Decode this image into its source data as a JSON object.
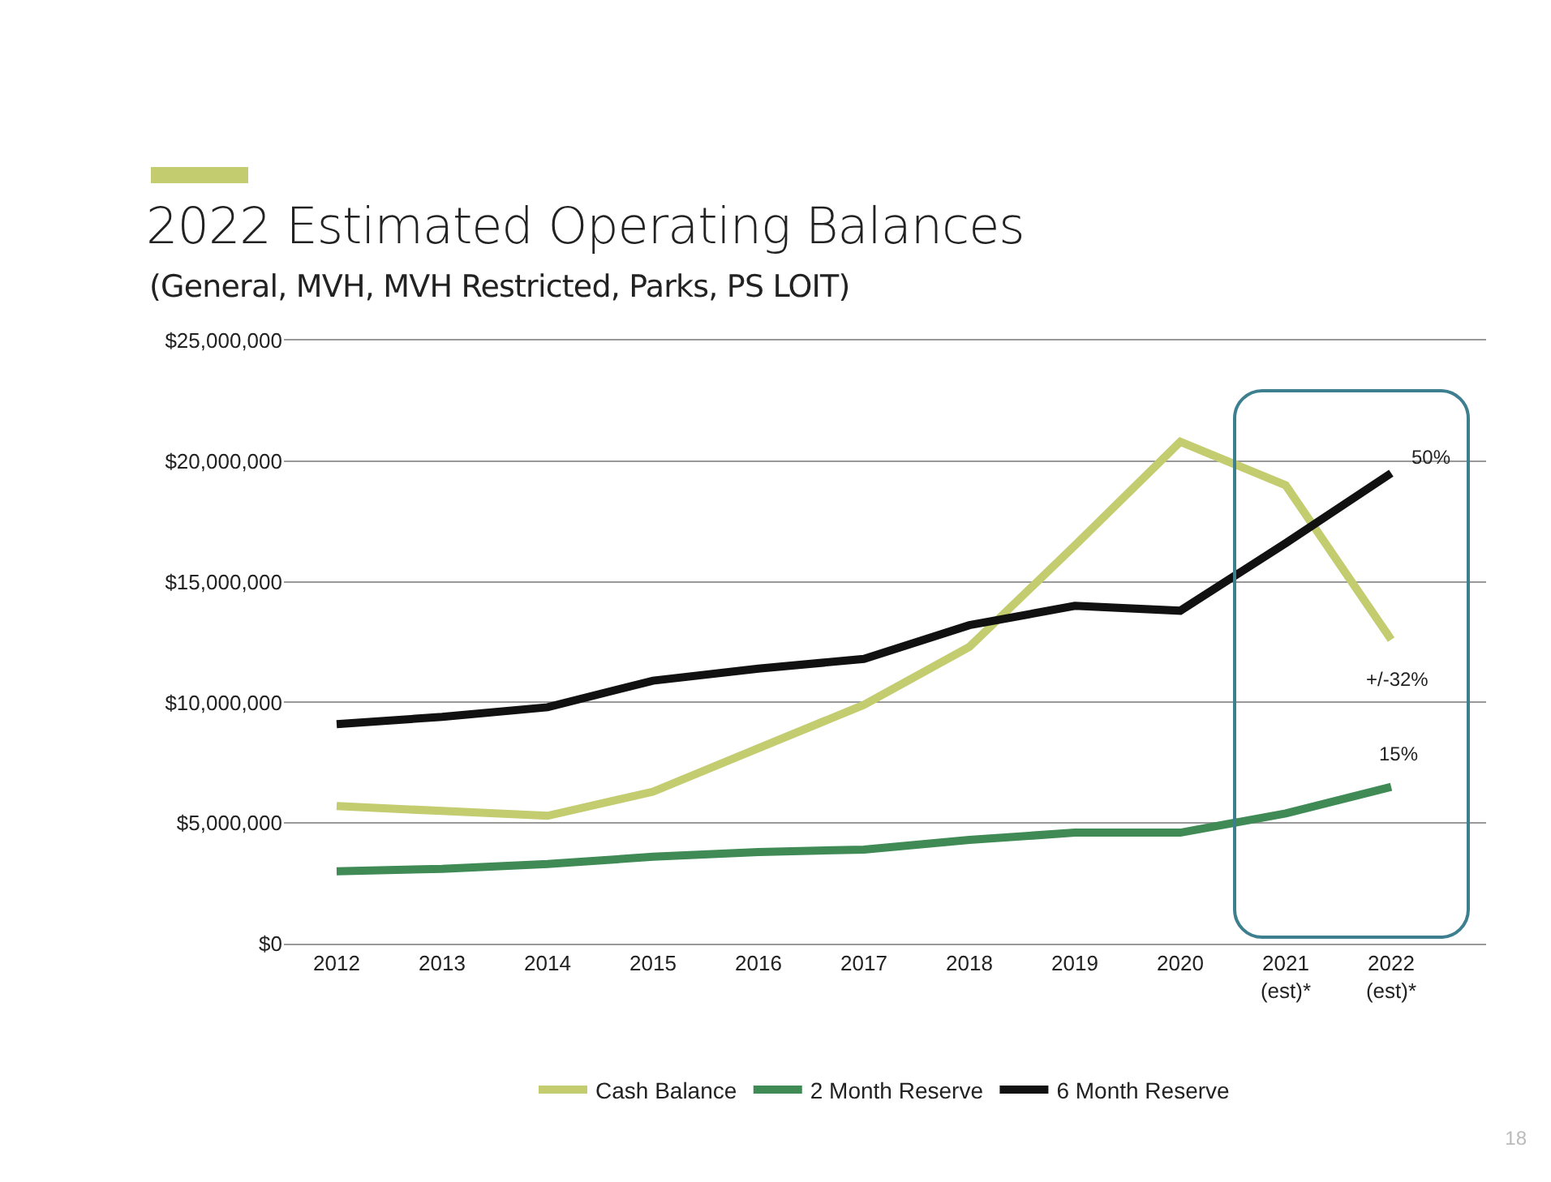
{
  "chart_data": {
    "type": "line",
    "title": "2022 Estimated Operating Balances",
    "subtitle": "(General, MVH, MVH Restricted, Parks, PS LOIT)",
    "categories": [
      "2012",
      "2013",
      "2014",
      "2015",
      "2016",
      "2017",
      "2018",
      "2019",
      "2020",
      "2021\n(est)*",
      "2022\n(est)*"
    ],
    "series": [
      {
        "name": "Cash Balance",
        "color": "#c3cc6e",
        "values": [
          5700000,
          5500000,
          5300000,
          6300000,
          8100000,
          9900000,
          12300000,
          16500000,
          20800000,
          19000000,
          12600000
        ]
      },
      {
        "name": "2 Month Reserve",
        "color": "#3f8a55",
        "values": [
          3000000,
          3100000,
          3300000,
          3600000,
          3800000,
          3900000,
          4300000,
          4600000,
          4600000,
          5400000,
          6500000
        ]
      },
      {
        "name": "6 Month Reserve",
        "color": "#111111",
        "values": [
          9100000,
          9400000,
          9800000,
          10900000,
          11400000,
          11800000,
          13200000,
          14000000,
          13800000,
          16600000,
          19500000
        ]
      }
    ],
    "ylim": [
      0,
      25000000
    ],
    "yticks": [
      {
        "value": 0,
        "label": "$0"
      },
      {
        "value": 5000000,
        "label": "$5,000,000"
      },
      {
        "value": 10000000,
        "label": "$10,000,000"
      },
      {
        "value": 15000000,
        "label": "$15,000,000"
      },
      {
        "value": 20000000,
        "label": "$20,000,000"
      },
      {
        "value": 25000000,
        "label": "$25,000,000"
      }
    ],
    "grid": "y",
    "legend": "bottom",
    "marker": "none",
    "line_style": "solid",
    "annotations": [
      {
        "text": "50%",
        "x": "2022\n(est)*",
        "y": 19500000
      },
      {
        "text": "+/-32%",
        "x": "2022\n(est)*",
        "y": 12600000
      },
      {
        "text": "15%",
        "x": "2022\n(est)*",
        "y": 6500000
      },
      "18"
    ]
  }
}
